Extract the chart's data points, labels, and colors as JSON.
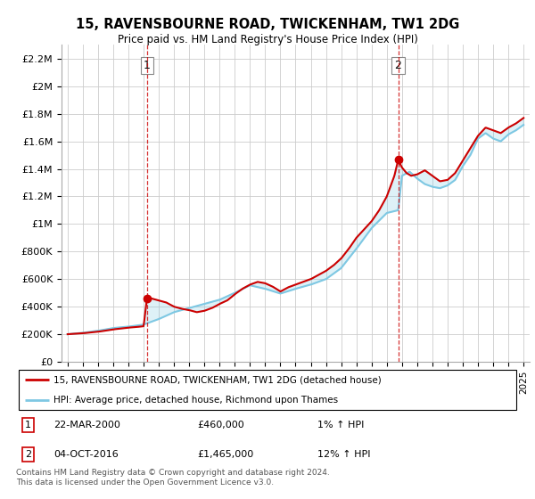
{
  "title": "15, RAVENSBOURNE ROAD, TWICKENHAM, TW1 2DG",
  "subtitle": "Price paid vs. HM Land Registry's House Price Index (HPI)",
  "ylim": [
    0,
    2300000
  ],
  "yticks": [
    0,
    200000,
    400000,
    600000,
    800000,
    1000000,
    1200000,
    1400000,
    1600000,
    1800000,
    2000000,
    2200000
  ],
  "ytick_labels": [
    "£0",
    "£200K",
    "£400K",
    "£600K",
    "£800K",
    "£1M",
    "£1.2M",
    "£1.4M",
    "£1.6M",
    "£1.8M",
    "£2M",
    "£2.2M"
  ],
  "hpi_color": "#7ec8e3",
  "price_color": "#cc0000",
  "marker_color": "#cc0000",
  "dashed_line_color": "#cc0000",
  "background_color": "#ffffff",
  "grid_color": "#cccccc",
  "sale1_x": 2000.22,
  "sale1_y": 460000,
  "sale2_x": 2016.75,
  "sale2_y": 1465000,
  "legend_line1": "15, RAVENSBOURNE ROAD, TWICKENHAM, TW1 2DG (detached house)",
  "legend_line2": "HPI: Average price, detached house, Richmond upon Thames",
  "footnote": "Contains HM Land Registry data © Crown copyright and database right 2024.\nThis data is licensed under the Open Government Licence v3.0.",
  "xtick_years": [
    1995,
    1996,
    1997,
    1998,
    1999,
    2000,
    2001,
    2002,
    2003,
    2004,
    2005,
    2006,
    2007,
    2008,
    2009,
    2010,
    2011,
    2012,
    2013,
    2014,
    2015,
    2016,
    2017,
    2018,
    2019,
    2020,
    2021,
    2022,
    2023,
    2024,
    2025
  ]
}
